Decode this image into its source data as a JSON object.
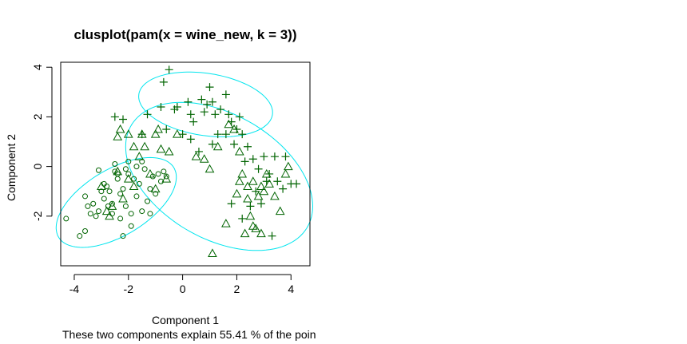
{
  "colors": {
    "ellipse": "#00e5ee",
    "points": "#006400",
    "axes": "#000000",
    "background": "#ffffff"
  },
  "chart_data": {
    "type": "scatter",
    "title": "clusplot(pam(x = wine_new, k = 3))",
    "xlabel": "Component 1",
    "ylabel": "Component 2",
    "subtitle": "These two components explain 55.41 % of the poin",
    "xlim": [
      -4.5,
      4.7
    ],
    "ylim": [
      -4.0,
      4.2
    ],
    "xticks": [
      -4,
      -2,
      0,
      2,
      4
    ],
    "yticks": [
      -2,
      0,
      2,
      4
    ],
    "xtick_labels": [
      "-4",
      "-2",
      "0",
      "2",
      "4"
    ],
    "ytick_labels": [
      "-2",
      "0",
      "2",
      "4"
    ],
    "grid": false,
    "ellipses": [
      {
        "cluster": 1,
        "center": [
          -2.45,
          -1.45
        ],
        "semi_axes": [
          2.55,
          1.3
        ],
        "angle_deg": 35
      },
      {
        "cluster": 2,
        "center": [
          1.35,
          -0.4
        ],
        "semi_axes": [
          3.85,
          2.45
        ],
        "angle_deg": -35
      },
      {
        "cluster": 3,
        "center": [
          0.85,
          2.5
        ],
        "semi_axes": [
          2.5,
          1.25
        ],
        "angle_deg": -10
      }
    ],
    "series": [
      {
        "cluster": 1,
        "marker": "circle",
        "points": [
          [
            -4.3,
            -2.1
          ],
          [
            -3.8,
            -2.8
          ],
          [
            -3.6,
            -2.6
          ],
          [
            -3.1,
            -0.15
          ],
          [
            -3.6,
            -1.2
          ],
          [
            -3.5,
            -1.6
          ],
          [
            -3.3,
            -1.5
          ],
          [
            -3.2,
            -2.0
          ],
          [
            -3.1,
            -1.8
          ],
          [
            -3.0,
            -1.0
          ],
          [
            -2.9,
            -1.3
          ],
          [
            -2.8,
            -0.8
          ],
          [
            -2.7,
            -1.0
          ],
          [
            -2.6,
            -1.5
          ],
          [
            -2.5,
            -0.2
          ],
          [
            -2.4,
            -0.5
          ],
          [
            -2.3,
            -1.1
          ],
          [
            -2.2,
            -0.9
          ],
          [
            -2.1,
            -1.6
          ],
          [
            -2.0,
            -0.3
          ],
          [
            -1.9,
            -1.9
          ],
          [
            -1.8,
            -0.5
          ],
          [
            -1.7,
            -1.2
          ],
          [
            -1.6,
            -0.7
          ],
          [
            -1.5,
            -1.8
          ],
          [
            -1.4,
            -0.1
          ],
          [
            -1.3,
            -1.4
          ],
          [
            -1.2,
            -0.9
          ],
          [
            -1.1,
            -0.4
          ],
          [
            -1.0,
            -1.1
          ],
          [
            -0.9,
            -0.3
          ],
          [
            -0.8,
            -0.6
          ],
          [
            -0.7,
            -0.2
          ],
          [
            -0.6,
            -0.4
          ],
          [
            -2.5,
            0.1
          ],
          [
            -2.0,
            0.2
          ],
          [
            -1.5,
            0.2
          ],
          [
            -2.6,
            -1.9
          ],
          [
            -2.3,
            -2.1
          ],
          [
            -1.9,
            -2.4
          ],
          [
            -2.2,
            -2.8
          ],
          [
            -2.9,
            -0.7
          ],
          [
            -3.4,
            -1.9
          ],
          [
            -2.75,
            -1.6
          ],
          [
            -2.4,
            -0.3
          ],
          [
            -1.7,
            0.0
          ],
          [
            -1.2,
            -1.9
          ],
          [
            -2.1,
            -0.1
          ]
        ]
      },
      {
        "cluster": 2,
        "marker": "triangle",
        "points": [
          [
            -3.0,
            -0.8
          ],
          [
            -2.8,
            -1.8
          ],
          [
            -2.6,
            -1.6
          ],
          [
            -2.4,
            -0.2
          ],
          [
            -2.2,
            -1.3
          ],
          [
            -2.0,
            -0.5
          ],
          [
            -1.8,
            -0.8
          ],
          [
            -1.6,
            0.4
          ],
          [
            -1.4,
            0.8
          ],
          [
            -1.2,
            -0.3
          ],
          [
            -1.0,
            -0.9
          ],
          [
            -0.8,
            0.7
          ],
          [
            -0.6,
            -0.5
          ],
          [
            -0.9,
            1.5
          ],
          [
            -1.0,
            1.3
          ],
          [
            -1.5,
            1.3
          ],
          [
            -2.0,
            1.3
          ],
          [
            -2.3,
            1.5
          ],
          [
            -2.4,
            1.2
          ],
          [
            -1.8,
            0.8
          ],
          [
            -0.2,
            1.3
          ],
          [
            0.5,
            0.4
          ],
          [
            0.8,
            0.3
          ],
          [
            1.0,
            -0.1
          ],
          [
            1.3,
            0.8
          ],
          [
            1.7,
            1.7
          ],
          [
            1.9,
            1.5
          ],
          [
            2.1,
            0.6
          ],
          [
            2.2,
            -0.3
          ],
          [
            2.4,
            -0.8
          ],
          [
            2.6,
            -0.6
          ],
          [
            2.8,
            -1.2
          ],
          [
            3.0,
            -1.0
          ],
          [
            3.2,
            -0.7
          ],
          [
            3.4,
            -1.2
          ],
          [
            3.6,
            -1.8
          ],
          [
            3.8,
            -0.3
          ],
          [
            3.9,
            0.0
          ],
          [
            2.5,
            -2.0
          ],
          [
            2.6,
            -2.4
          ],
          [
            2.7,
            -2.5
          ],
          [
            2.3,
            -2.7
          ],
          [
            2.1,
            -0.6
          ],
          [
            2.0,
            -1.1
          ],
          [
            1.6,
            -2.3
          ],
          [
            1.1,
            -3.5
          ],
          [
            2.9,
            -2.7
          ],
          [
            2.4,
            -1.3
          ],
          [
            2.9,
            -0.8
          ],
          [
            3.1,
            -0.3
          ],
          [
            -0.5,
            0.6
          ],
          [
            -2.7,
            -2.0
          ]
        ]
      },
      {
        "cluster": 3,
        "marker": "plus",
        "points": [
          [
            -0.5,
            3.9
          ],
          [
            -0.7,
            3.4
          ],
          [
            -0.3,
            2.3
          ],
          [
            -0.2,
            2.4
          ],
          [
            0.3,
            2.1
          ],
          [
            0.7,
            2.7
          ],
          [
            0.9,
            2.5
          ],
          [
            1.0,
            3.2
          ],
          [
            1.1,
            2.6
          ],
          [
            1.2,
            2.1
          ],
          [
            1.4,
            2.3
          ],
          [
            1.6,
            2.9
          ],
          [
            1.7,
            2.1
          ],
          [
            1.8,
            1.8
          ],
          [
            2.0,
            1.5
          ],
          [
            2.2,
            1.3
          ],
          [
            2.4,
            0.8
          ],
          [
            2.6,
            0.3
          ],
          [
            2.8,
            -0.1
          ],
          [
            3.0,
            0.4
          ],
          [
            3.2,
            -0.3
          ],
          [
            3.5,
            -0.6
          ],
          [
            3.7,
            -0.9
          ],
          [
            4.0,
            -0.7
          ],
          [
            4.2,
            -0.7
          ],
          [
            3.4,
            0.4
          ],
          [
            3.1,
            -0.6
          ],
          [
            2.7,
            -1.0
          ],
          [
            2.5,
            -1.6
          ],
          [
            1.8,
            -1.5
          ],
          [
            1.6,
            1.3
          ],
          [
            0.4,
            1.8
          ],
          [
            0.0,
            1.3
          ],
          [
            -0.6,
            1.5
          ],
          [
            -1.3,
            2.1
          ],
          [
            -1.5,
            1.3
          ],
          [
            -2.2,
            1.9
          ],
          [
            -2.5,
            2.0
          ],
          [
            0.6,
            0.6
          ],
          [
            1.3,
            1.3
          ],
          [
            1.9,
            0.9
          ],
          [
            2.3,
            0.2
          ],
          [
            2.9,
            -1.5
          ],
          [
            3.3,
            -2.8
          ],
          [
            2.2,
            -2.1
          ],
          [
            0.3,
            1.1
          ],
          [
            -0.8,
            2.4
          ],
          [
            1.1,
            0.9
          ],
          [
            0.2,
            2.6
          ],
          [
            0.8,
            2.2
          ],
          [
            3.8,
            0.4
          ],
          [
            2.1,
            2.0
          ]
        ]
      }
    ]
  }
}
